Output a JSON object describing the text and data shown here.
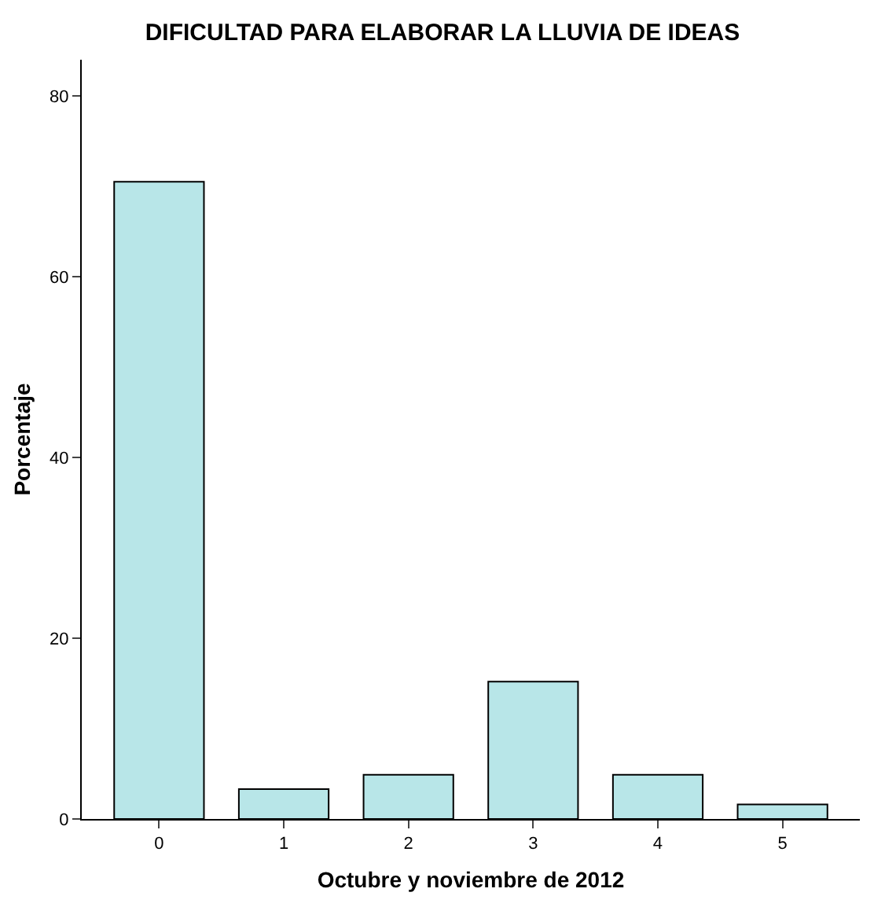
{
  "chart_data": {
    "type": "bar",
    "title": "DIFICULTAD PARA ELABORAR LA LLUVIA DE IDEAS",
    "xlabel": "Octubre y noviembre de 2012",
    "ylabel": "Porcentaje",
    "categories": [
      "0",
      "1",
      "2",
      "3",
      "4",
      "5"
    ],
    "values": [
      70.5,
      3.3,
      4.9,
      15.2,
      4.9,
      1.6
    ],
    "color": "#b8e6e8",
    "ylim": [
      0,
      84
    ],
    "yticks": [
      0,
      20,
      40,
      60,
      80
    ]
  }
}
